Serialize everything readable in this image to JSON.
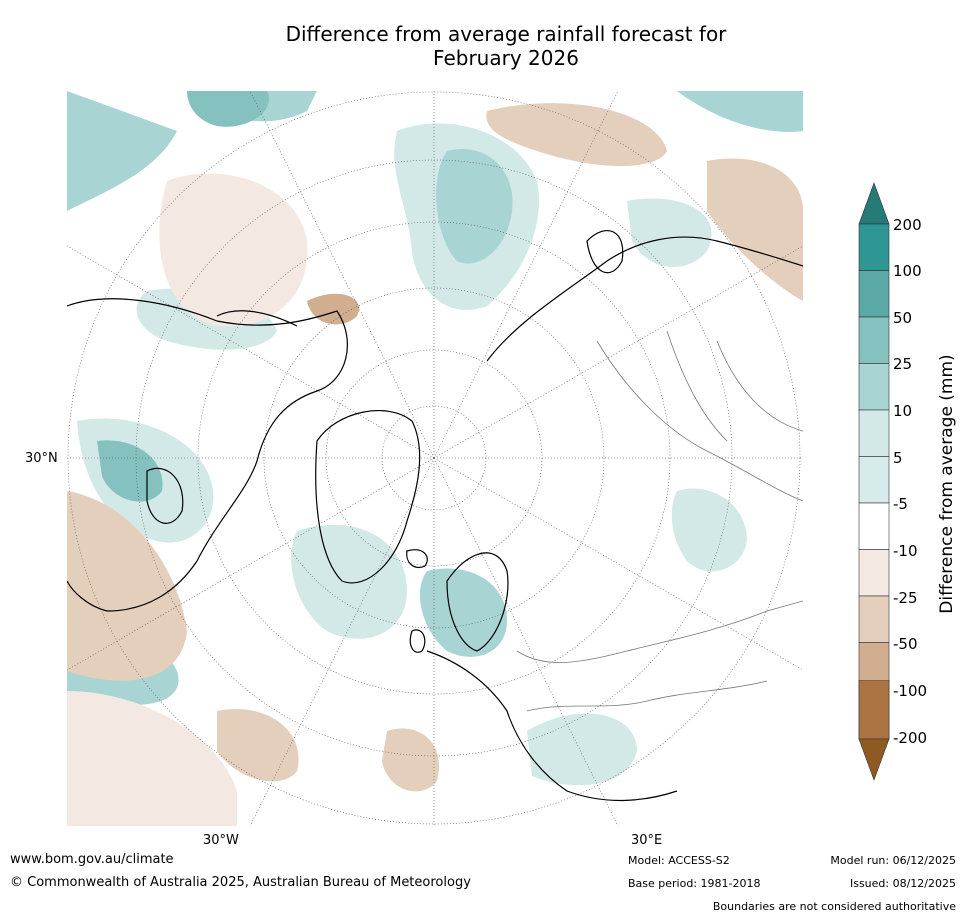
{
  "title": {
    "line1": "Difference from average rainfall forecast for",
    "line2": "February 2026"
  },
  "map": {
    "projection": "north-polar-stereographic",
    "lat_label": "30°N",
    "lon_labels": {
      "west": "30°W",
      "east": "30°E"
    }
  },
  "colorbar": {
    "title": "Difference from average (mm)",
    "ticks": [
      "200",
      "100",
      "50",
      "25",
      "10",
      "5",
      "-5",
      "-10",
      "-25",
      "-50",
      "-100",
      "-200"
    ],
    "colors": {
      "extend_top": "#267a78",
      "200_plus": "#2f9793",
      "100_200": "#5aa9a7",
      "50_100": "#84c1bf",
      "25_50": "#a8d5d3",
      "10_25": "#d2e9e8",
      "5_10": "#d6ecea",
      "neutral": "#ffffff",
      "neg5_neg10": "#f3e9e2",
      "neg10_neg25": "#e4cfbd",
      "neg25_neg50": "#d1ae8f",
      "neg50_neg100": "#bd8d62",
      "neg100_neg200": "#ab7442",
      "extend_bottom": "#8f5a22"
    }
  },
  "footer": {
    "website": "www.bom.gov.au/climate",
    "copyright": "© Commonwealth of Australia 2025, Australian Bureau of Meteorology",
    "model": "Model: ACCESS-S2",
    "base_period": "Base period: 1981-2018",
    "model_run": "Model run: 06/12/2025",
    "issued": "Issued: 08/12/2025",
    "disclaimer": "Boundaries are not considered authoritative"
  }
}
